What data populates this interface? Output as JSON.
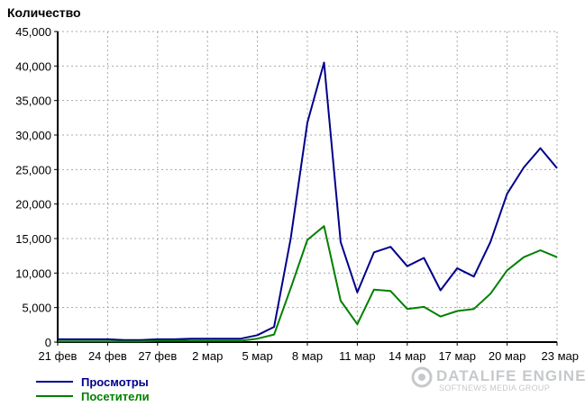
{
  "chart_data": {
    "type": "line",
    "ylabel": "Количество",
    "ylim": [
      0,
      45000
    ],
    "yticks": [
      0,
      5000,
      10000,
      15000,
      20000,
      25000,
      30000,
      35000,
      40000,
      45000
    ],
    "ytick_labels": [
      "0",
      "5,000",
      "10,000",
      "15,000",
      "20,000",
      "25,000",
      "30,000",
      "35,000",
      "40,000",
      "45,000"
    ],
    "x": [
      "21 фев",
      "22 фев",
      "23 фев",
      "24 фев",
      "25 фев",
      "26 фев",
      "27 фев",
      "28 фев",
      "1 мар",
      "2 мар",
      "3 мар",
      "4 мар",
      "5 мар",
      "6 мар",
      "7 мар",
      "8 мар",
      "9 мар",
      "10 мар",
      "11 мар",
      "12 мар",
      "13 мар",
      "14 мар",
      "15 мар",
      "16 мар",
      "17 мар",
      "18 мар",
      "19 мар",
      "20 мар",
      "21 мар",
      "22 мар",
      "23 мар"
    ],
    "xtick_labels": [
      "21 фев",
      "24 фев",
      "27 фев",
      "2 мар",
      "5 мар",
      "8 мар",
      "11 мар",
      "14 мар",
      "17 мар",
      "20 мар",
      "23 мар"
    ],
    "grid": true,
    "legend_position": "bottom-left",
    "series": [
      {
        "name": "Просмотры",
        "color": "#00008b",
        "values": [
          400,
          400,
          400,
          400,
          300,
          300,
          400,
          400,
          500,
          500,
          500,
          500,
          1000,
          2200,
          15000,
          31800,
          40500,
          14500,
          7200,
          13000,
          13800,
          11000,
          12200,
          7500,
          10700,
          9500,
          14500,
          21500,
          25300,
          28100,
          25200
        ]
      },
      {
        "name": "Посетители",
        "color": "#008000",
        "values": [
          100,
          100,
          100,
          100,
          100,
          100,
          200,
          200,
          200,
          200,
          200,
          200,
          500,
          1100,
          7800,
          14800,
          16800,
          6000,
          2600,
          7600,
          7400,
          4800,
          5100,
          3700,
          4500,
          4800,
          7000,
          10400,
          12300,
          13300,
          12300
        ]
      }
    ]
  },
  "watermark": {
    "title": "DATALIFE ENGINE",
    "subtitle": "SOFTNEWS MEDIA GROUP"
  }
}
